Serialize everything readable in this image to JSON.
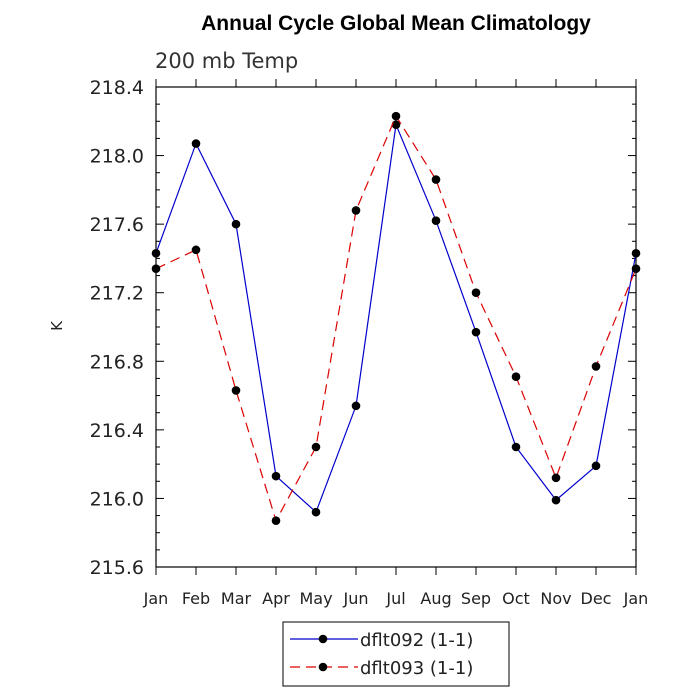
{
  "chart_data": {
    "type": "line",
    "title": "Annual Cycle Global Mean Climatology",
    "subtitle": "200 mb Temp",
    "xlabel": "",
    "ylabel": "K",
    "ylim": [
      215.6,
      218.4
    ],
    "yticks": [
      "215.6",
      "216.0",
      "216.4",
      "216.8",
      "217.2",
      "217.6",
      "218.0",
      "218.4"
    ],
    "categories": [
      "Jan",
      "Feb",
      "Mar",
      "Apr",
      "May",
      "Jun",
      "Jul",
      "Aug",
      "Sep",
      "Oct",
      "Nov",
      "Dec",
      "Jan"
    ],
    "legend_position": "bottom",
    "series": [
      {
        "name": "dflt092 (1-1)",
        "color": "#0000cc",
        "dash": "solid",
        "values": [
          217.43,
          218.07,
          217.6,
          216.13,
          215.92,
          216.54,
          218.18,
          217.62,
          216.97,
          216.3,
          215.99,
          216.19,
          217.43
        ]
      },
      {
        "name": "dflt093 (1-1)",
        "color": "#dd0000",
        "dash": "dashed",
        "values": [
          217.34,
          217.45,
          216.63,
          215.87,
          216.3,
          217.68,
          218.23,
          217.86,
          217.2,
          216.71,
          216.12,
          216.77,
          217.34
        ]
      }
    ]
  }
}
